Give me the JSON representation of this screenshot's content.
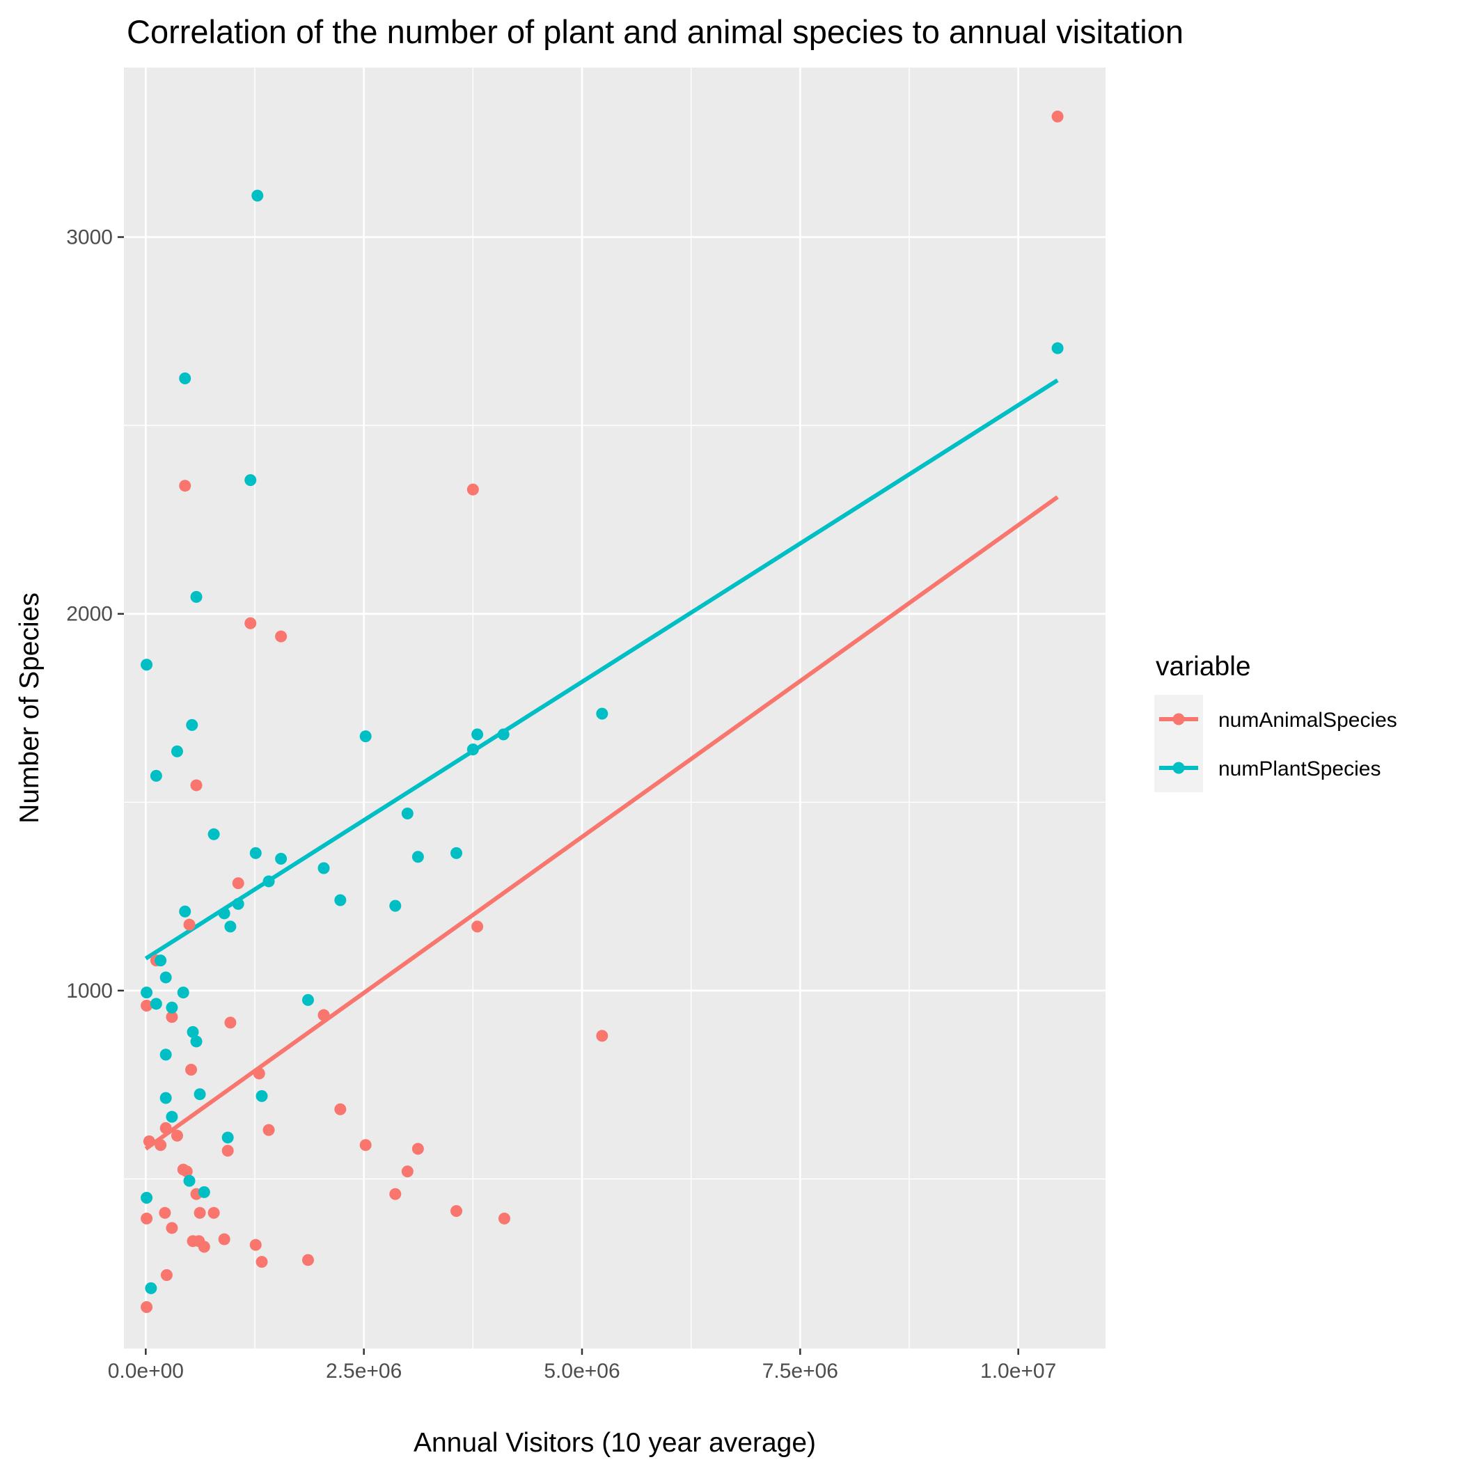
{
  "chart_data": {
    "type": "scatter",
    "title": "Correlation of the number of plant and animal species to annual visitation",
    "xlabel": "Annual Visitors (10 year average)",
    "ylabel": "Number of Species",
    "xlim": [
      -250000,
      11000000
    ],
    "ylim": [
      50,
      3450
    ],
    "x_ticks": [
      0,
      2500000,
      5000000,
      7500000,
      10000000
    ],
    "x_tick_labels": [
      "0.0e+00",
      "2.5e+06",
      "5.0e+06",
      "7.5e+06",
      "1.0e+07"
    ],
    "y_ticks": [
      1000,
      2000,
      3000
    ],
    "y_tick_labels": [
      "1000",
      "2000",
      "3000"
    ],
    "grid": true,
    "legend": {
      "title": "variable",
      "position": "right"
    },
    "series": [
      {
        "name": "numAnimalSpecies",
        "color": "#F8766D",
        "fit": {
          "x": [
            0,
            10450000
          ],
          "y": [
            580,
            2310
          ]
        },
        "points": [
          [
            10450000,
            3320
          ],
          [
            450000,
            2340
          ],
          [
            3750000,
            2330
          ],
          [
            1200000,
            1975
          ],
          [
            1550000,
            1940
          ],
          [
            580000,
            1545
          ],
          [
            1060000,
            1285
          ],
          [
            3800000,
            1170
          ],
          [
            500000,
            1175
          ],
          [
            120000,
            1080
          ],
          [
            10000,
            960
          ],
          [
            300000,
            930
          ],
          [
            970000,
            915
          ],
          [
            2040000,
            935
          ],
          [
            5230000,
            880
          ],
          [
            520000,
            790
          ],
          [
            1300000,
            780
          ],
          [
            2230000,
            685
          ],
          [
            230000,
            635
          ],
          [
            1410000,
            630
          ],
          [
            360000,
            615
          ],
          [
            40000,
            600
          ],
          [
            170000,
            590
          ],
          [
            2520000,
            590
          ],
          [
            940000,
            575
          ],
          [
            3120000,
            580
          ],
          [
            430000,
            525
          ],
          [
            470000,
            520
          ],
          [
            3000000,
            520
          ],
          [
            580000,
            460
          ],
          [
            2860000,
            460
          ],
          [
            620000,
            410
          ],
          [
            780000,
            410
          ],
          [
            220000,
            410
          ],
          [
            3560000,
            415
          ],
          [
            10000,
            395
          ],
          [
            4110000,
            395
          ],
          [
            300000,
            370
          ],
          [
            540000,
            335
          ],
          [
            610000,
            335
          ],
          [
            670000,
            320
          ],
          [
            900000,
            340
          ],
          [
            1260000,
            325
          ],
          [
            1330000,
            280
          ],
          [
            1860000,
            285
          ],
          [
            240000,
            245
          ],
          [
            10000,
            160
          ]
        ]
      },
      {
        "name": "numPlantSpecies",
        "color": "#00BFC4",
        "fit": {
          "x": [
            0,
            10450000
          ],
          "y": [
            1085,
            2620
          ]
        },
        "points": [
          [
            1280000,
            3110
          ],
          [
            10450000,
            2705
          ],
          [
            450000,
            2625
          ],
          [
            1200000,
            2355
          ],
          [
            580000,
            2045
          ],
          [
            10000,
            1865
          ],
          [
            5230000,
            1735
          ],
          [
            530000,
            1705
          ],
          [
            4100000,
            1680
          ],
          [
            3800000,
            1680
          ],
          [
            2520000,
            1675
          ],
          [
            360000,
            1635
          ],
          [
            3750000,
            1640
          ],
          [
            120000,
            1570
          ],
          [
            3000000,
            1470
          ],
          [
            780000,
            1415
          ],
          [
            1260000,
            1365
          ],
          [
            1550000,
            1350
          ],
          [
            3560000,
            1365
          ],
          [
            3120000,
            1355
          ],
          [
            2040000,
            1325
          ],
          [
            1410000,
            1290
          ],
          [
            2230000,
            1240
          ],
          [
            2860000,
            1225
          ],
          [
            1060000,
            1230
          ],
          [
            450000,
            1210
          ],
          [
            900000,
            1205
          ],
          [
            970000,
            1170
          ],
          [
            170000,
            1080
          ],
          [
            230000,
            1035
          ],
          [
            10000,
            995
          ],
          [
            430000,
            995
          ],
          [
            120000,
            965
          ],
          [
            300000,
            955
          ],
          [
            540000,
            890
          ],
          [
            580000,
            865
          ],
          [
            230000,
            830
          ],
          [
            1860000,
            975
          ],
          [
            620000,
            725
          ],
          [
            1330000,
            720
          ],
          [
            230000,
            715
          ],
          [
            300000,
            665
          ],
          [
            940000,
            610
          ],
          [
            500000,
            495
          ],
          [
            670000,
            465
          ],
          [
            10000,
            450
          ],
          [
            60000,
            210
          ]
        ]
      }
    ]
  }
}
